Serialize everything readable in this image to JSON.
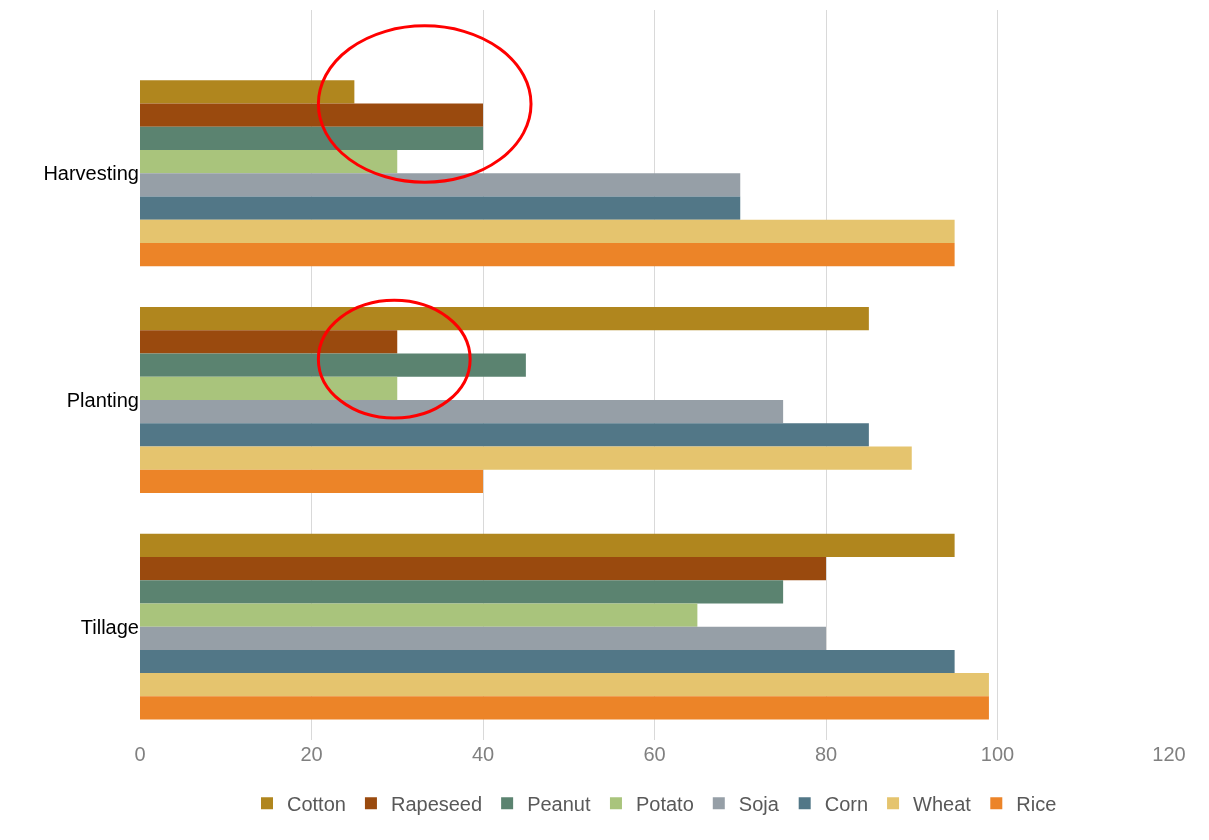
{
  "chart_data": {
    "type": "bar",
    "orientation": "horizontal",
    "categories": [
      "Harvesting",
      "Planting",
      "Tillage"
    ],
    "series": [
      {
        "name": "Cotton",
        "color": "#b0861e",
        "values": [
          25,
          85,
          95
        ]
      },
      {
        "name": "Rapeseed",
        "color": "#9a4a0e",
        "values": [
          40,
          30,
          80
        ]
      },
      {
        "name": "Peanut",
        "color": "#5b8370",
        "values": [
          40,
          45,
          75
        ]
      },
      {
        "name": "Potato",
        "color": "#a9c47c",
        "values": [
          30,
          30,
          65
        ]
      },
      {
        "name": "Soja",
        "color": "#969fa7",
        "values": [
          70,
          75,
          80
        ]
      },
      {
        "name": "Corn",
        "color": "#527787",
        "values": [
          70,
          85,
          95
        ]
      },
      {
        "name": "Wheat",
        "color": "#e5c46e",
        "values": [
          95,
          90,
          99
        ]
      },
      {
        "name": "Rice",
        "color": "#ec8428",
        "values": [
          95,
          40,
          99
        ]
      }
    ],
    "xlim": [
      0,
      120
    ],
    "xticks": [
      0,
      20,
      40,
      60,
      80,
      100,
      120
    ],
    "grid": "x",
    "legend": "bottom"
  }
}
